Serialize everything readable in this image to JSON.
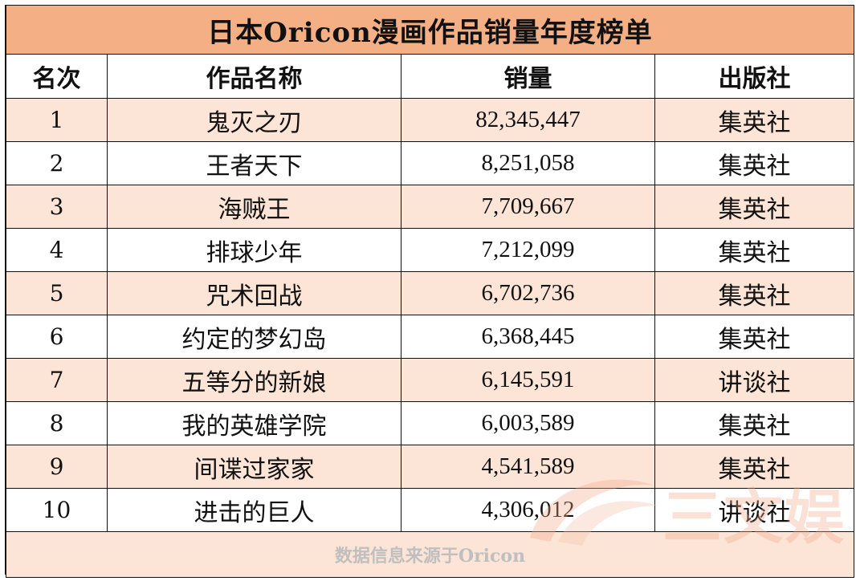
{
  "title": "日本Oricon漫画作品销量年度榜单",
  "headers": {
    "rank": "名次",
    "work": "作品名称",
    "sales": "销量",
    "publisher": "出版社"
  },
  "rows": [
    {
      "rank": "1",
      "work": "鬼灭之刃",
      "sales": "82,345,447",
      "publisher": "集英社"
    },
    {
      "rank": "2",
      "work": "王者天下",
      "sales": "8,251,058",
      "publisher": "集英社"
    },
    {
      "rank": "3",
      "work": "海贼王",
      "sales": "7,709,667",
      "publisher": "集英社"
    },
    {
      "rank": "4",
      "work": "排球少年",
      "sales": "7,212,099",
      "publisher": "集英社"
    },
    {
      "rank": "5",
      "work": "咒术回战",
      "sales": "6,702,736",
      "publisher": "集英社"
    },
    {
      "rank": "6",
      "work": "约定的梦幻岛",
      "sales": "6,368,445",
      "publisher": "集英社"
    },
    {
      "rank": "7",
      "work": "五等分的新娘",
      "sales": "6,145,591",
      "publisher": "讲谈社"
    },
    {
      "rank": "8",
      "work": "我的英雄学院",
      "sales": "6,003,589",
      "publisher": "集英社"
    },
    {
      "rank": "9",
      "work": "间谍过家家",
      "sales": "4,541,589",
      "publisher": "集英社"
    },
    {
      "rank": "10",
      "work": "进击的巨人",
      "sales": "4,306,012",
      "publisher": "讲谈社"
    }
  ],
  "footer": "数据信息来源于Oricon",
  "watermark": {
    "text": "三文娱",
    "icon": "swirl-logo-icon",
    "color": "#f2a98a"
  },
  "colors": {
    "title_bg": "#f4b084",
    "stripe_bg": "#fce4d6",
    "border": "#111111"
  }
}
